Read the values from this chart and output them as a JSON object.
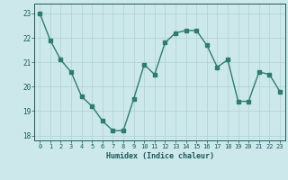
{
  "x": [
    0,
    1,
    2,
    3,
    4,
    5,
    6,
    7,
    8,
    9,
    10,
    11,
    12,
    13,
    14,
    15,
    16,
    17,
    18,
    19,
    20,
    21,
    22,
    23
  ],
  "y": [
    23.0,
    21.9,
    21.1,
    20.6,
    19.6,
    19.2,
    18.6,
    18.2,
    18.2,
    19.5,
    20.9,
    20.5,
    21.8,
    22.2,
    22.3,
    22.3,
    21.7,
    20.8,
    21.1,
    19.4,
    19.4,
    20.6,
    20.5,
    19.8
  ],
  "line_color": "#2d7d6e",
  "marker": "s",
  "marker_size": 2.5,
  "bg_color": "#cce8ea",
  "grid_color": "#b0d0d4",
  "tick_color": "#1a5a5a",
  "xlabel": "Humidex (Indice chaleur)",
  "ylim": [
    17.8,
    23.4
  ],
  "xlim": [
    -0.5,
    23.5
  ],
  "yticks": [
    18,
    19,
    20,
    21,
    22,
    23
  ],
  "xticks": [
    0,
    1,
    2,
    3,
    4,
    5,
    6,
    7,
    8,
    9,
    10,
    11,
    12,
    13,
    14,
    15,
    16,
    17,
    18,
    19,
    20,
    21,
    22,
    23
  ]
}
